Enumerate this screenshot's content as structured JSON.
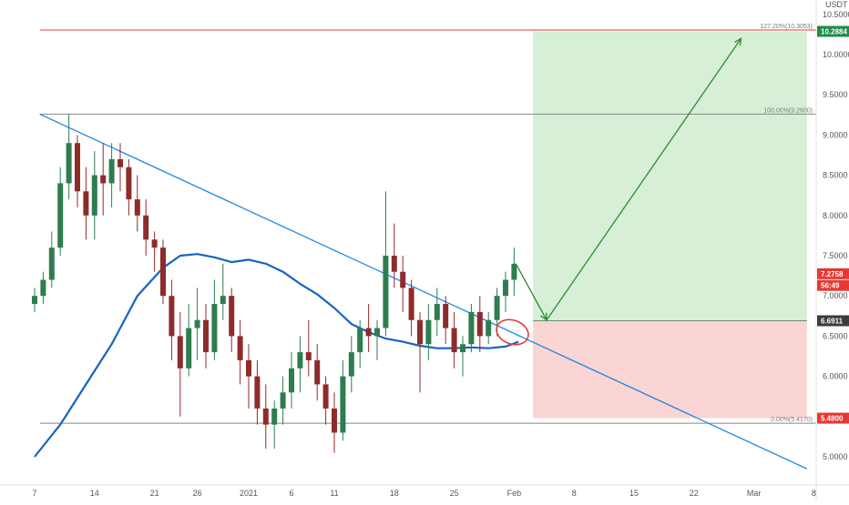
{
  "chart_data": {
    "type": "candlestick",
    "currency": "USDT",
    "colors": {
      "up": "#2e7d4f",
      "down": "#8e2b2b",
      "trendline": "#1e88e5",
      "ma": "#1565c0",
      "fib_top": "#e53935",
      "fib_mid": "#888888",
      "target_zone": "#d6efd6",
      "stop_zone": "#fbd4d4",
      "arrow": "#2e8b2e",
      "circle": "#e53935"
    },
    "x_axis": {
      "ticks": [
        {
          "i": 0,
          "label": "7"
        },
        {
          "i": 7,
          "label": "14"
        },
        {
          "i": 14,
          "label": "21"
        },
        {
          "i": 19,
          "label": "26"
        },
        {
          "i": 25,
          "label": "2021"
        },
        {
          "i": 30,
          "label": "6"
        },
        {
          "i": 35,
          "label": "11"
        },
        {
          "i": 42,
          "label": "18"
        },
        {
          "i": 49,
          "label": "25"
        },
        {
          "i": 56,
          "label": "Feb"
        },
        {
          "i": 63,
          "label": "8"
        },
        {
          "i": 70,
          "label": "15"
        },
        {
          "i": 77,
          "label": "22"
        },
        {
          "i": 84,
          "label": "Mar"
        },
        {
          "i": 91,
          "label": "8"
        }
      ]
    },
    "y_axis": {
      "min": 4.6,
      "max": 10.6,
      "ticks": [
        {
          "v": 10.5,
          "label": "10.5000"
        },
        {
          "v": 10.0,
          "label": "10.0000"
        },
        {
          "v": 9.5,
          "label": "9.5000"
        },
        {
          "v": 9.0,
          "label": "9.0000"
        },
        {
          "v": 8.5,
          "label": "8.5000"
        },
        {
          "v": 8.0,
          "label": "8.0000"
        },
        {
          "v": 7.5,
          "label": "7.5000"
        },
        {
          "v": 7.0,
          "label": "7.0000"
        },
        {
          "v": 6.5,
          "label": "6.5000"
        },
        {
          "v": 6.0,
          "label": "6.0000"
        },
        {
          "v": 5.0,
          "label": "5.0000"
        }
      ],
      "badges": [
        {
          "v": 10.2884,
          "label": "10.2884",
          "color": "#1f8a4c"
        },
        {
          "v": 7.2758,
          "label": "7.2758",
          "color": "#e53935"
        },
        {
          "v": 7.13,
          "label": "56:49",
          "color": "#e53935"
        },
        {
          "v": 6.6911,
          "label": "6.6911",
          "color": "#3d3d3d"
        },
        {
          "v": 5.48,
          "label": "5.4800",
          "color": "#e53935"
        }
      ]
    },
    "fib_levels": [
      {
        "v": 10.3053,
        "label": "127.20%(10.3053)"
      },
      {
        "v": 9.26,
        "label": "100.00%(9.2600)"
      },
      {
        "v": 5.417,
        "label": "0.00%(5.4170)"
      }
    ],
    "position": {
      "entry": 6.6911,
      "target": 10.2884,
      "stop": 5.48,
      "start_i": 58.2,
      "end_i": 90.2
    },
    "candles": [
      [
        6.9,
        7.1,
        6.8,
        7.0
      ],
      [
        7.0,
        7.3,
        6.9,
        7.2
      ],
      [
        7.2,
        7.8,
        7.1,
        7.6
      ],
      [
        7.6,
        8.6,
        7.5,
        8.4
      ],
      [
        8.4,
        9.26,
        8.2,
        8.9
      ],
      [
        8.9,
        9.0,
        8.1,
        8.3
      ],
      [
        8.3,
        8.6,
        7.7,
        8.0
      ],
      [
        8.0,
        8.8,
        7.7,
        8.5
      ],
      [
        8.5,
        8.9,
        8.0,
        8.4
      ],
      [
        8.4,
        8.9,
        8.1,
        8.7
      ],
      [
        8.7,
        8.9,
        8.3,
        8.6
      ],
      [
        8.6,
        8.7,
        8.0,
        8.2
      ],
      [
        8.2,
        8.5,
        7.8,
        8.0
      ],
      [
        8.0,
        8.2,
        7.5,
        7.7
      ],
      [
        7.7,
        7.8,
        7.3,
        7.6
      ],
      [
        7.6,
        7.7,
        6.9,
        7.0
      ],
      [
        7.0,
        7.2,
        6.2,
        6.5
      ],
      [
        6.5,
        6.8,
        5.5,
        6.1
      ],
      [
        6.1,
        6.9,
        6.0,
        6.6
      ],
      [
        6.6,
        7.1,
        6.2,
        6.7
      ],
      [
        6.7,
        6.9,
        6.1,
        6.3
      ],
      [
        6.3,
        7.2,
        6.2,
        6.9
      ],
      [
        6.9,
        7.4,
        6.7,
        7.0
      ],
      [
        7.0,
        7.1,
        6.3,
        6.5
      ],
      [
        6.5,
        6.7,
        5.9,
        6.2
      ],
      [
        6.2,
        6.4,
        5.6,
        6.0
      ],
      [
        6.0,
        6.2,
        5.4,
        5.6
      ],
      [
        5.6,
        5.9,
        5.1,
        5.4
      ],
      [
        5.4,
        5.7,
        5.1,
        5.6
      ],
      [
        5.6,
        6.0,
        5.4,
        5.8
      ],
      [
        5.8,
        6.3,
        5.6,
        6.1
      ],
      [
        6.1,
        6.5,
        5.8,
        6.3
      ],
      [
        6.3,
        6.7,
        6.0,
        6.2
      ],
      [
        6.2,
        6.4,
        5.7,
        5.9
      ],
      [
        5.9,
        6.0,
        5.4,
        5.6
      ],
      [
        5.6,
        5.8,
        5.05,
        5.3
      ],
      [
        5.3,
        6.2,
        5.2,
        6.0
      ],
      [
        6.0,
        6.5,
        5.8,
        6.3
      ],
      [
        6.3,
        6.7,
        6.1,
        6.6
      ],
      [
        6.6,
        6.9,
        6.3,
        6.5
      ],
      [
        6.5,
        6.7,
        6.2,
        6.6
      ],
      [
        6.6,
        8.3,
        6.5,
        7.5
      ],
      [
        7.5,
        7.9,
        7.1,
        7.3
      ],
      [
        7.3,
        7.5,
        6.8,
        7.1
      ],
      [
        7.1,
        7.2,
        6.5,
        6.7
      ],
      [
        6.7,
        6.8,
        5.8,
        6.4
      ],
      [
        6.4,
        6.9,
        6.2,
        6.7
      ],
      [
        6.7,
        7.1,
        6.5,
        6.9
      ],
      [
        6.9,
        7.0,
        6.4,
        6.6
      ],
      [
        6.6,
        6.8,
        6.1,
        6.3
      ],
      [
        6.3,
        6.5,
        6.0,
        6.4
      ],
      [
        6.4,
        6.9,
        6.3,
        6.8
      ],
      [
        6.8,
        7.0,
        6.3,
        6.5
      ],
      [
        6.5,
        6.8,
        6.4,
        6.7
      ],
      [
        6.7,
        7.1,
        6.5,
        7.0
      ],
      [
        7.0,
        7.3,
        6.8,
        7.2
      ],
      [
        7.2,
        7.6,
        7.0,
        7.4
      ]
    ],
    "trendline": {
      "i1": 0.6,
      "v1": 9.26,
      "i2": 90.2,
      "v2": 4.85
    },
    "ma": [
      {
        "i": 0,
        "v": 5.0
      },
      {
        "i": 3,
        "v": 5.4
      },
      {
        "i": 6,
        "v": 5.9
      },
      {
        "i": 9,
        "v": 6.4
      },
      {
        "i": 12,
        "v": 7.0
      },
      {
        "i": 15,
        "v": 7.35
      },
      {
        "i": 17,
        "v": 7.5
      },
      {
        "i": 19,
        "v": 7.52
      },
      {
        "i": 21,
        "v": 7.48
      },
      {
        "i": 23,
        "v": 7.42
      },
      {
        "i": 25,
        "v": 7.45
      },
      {
        "i": 27,
        "v": 7.4
      },
      {
        "i": 29,
        "v": 7.3
      },
      {
        "i": 31,
        "v": 7.15
      },
      {
        "i": 33,
        "v": 7.02
      },
      {
        "i": 35,
        "v": 6.85
      },
      {
        "i": 37,
        "v": 6.65
      },
      {
        "i": 39,
        "v": 6.55
      },
      {
        "i": 41,
        "v": 6.47
      },
      {
        "i": 43,
        "v": 6.43
      },
      {
        "i": 45,
        "v": 6.38
      },
      {
        "i": 47,
        "v": 6.35
      },
      {
        "i": 49,
        "v": 6.35
      },
      {
        "i": 51,
        "v": 6.36
      },
      {
        "i": 53,
        "v": 6.35
      },
      {
        "i": 55,
        "v": 6.37
      },
      {
        "i": 56.5,
        "v": 6.43
      }
    ],
    "projection": [
      {
        "i": 56.2,
        "v": 7.4
      },
      {
        "i": 59.8,
        "v": 6.7
      },
      {
        "i": 82.5,
        "v": 10.2
      }
    ],
    "circle_marker": {
      "i": 55.8,
      "v": 6.55
    }
  }
}
